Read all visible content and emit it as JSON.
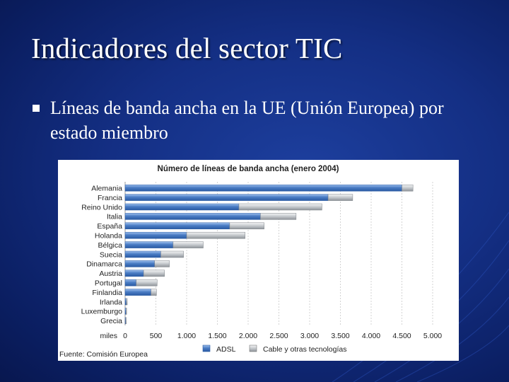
{
  "slide": {
    "title": "Indicadores del sector TIC",
    "bullet": "Líneas de banda ancha en la UE (Unión Europea) por estado miembro"
  },
  "colors": {
    "background": "#142f84",
    "adsl": "#4a7cc4",
    "cable": "#c4c8cc"
  },
  "chart_data": {
    "type": "bar",
    "orientation": "horizontal",
    "stacked": true,
    "title": "Número de líneas de banda ancha (enero 2004)",
    "xlabel": "miles",
    "source": "Fuente: Comisión Europea",
    "categories": [
      "Alemania",
      "Francia",
      "Reino Unido",
      "Italia",
      "España",
      "Holanda",
      "Bélgica",
      "Suecia",
      "Dinamarca",
      "Austria",
      "Portugal",
      "Finlandia",
      "Irlanda",
      "Luxemburgo",
      "Grecia"
    ],
    "series": [
      {
        "name": "ADSL",
        "values": [
          4500,
          3300,
          1850,
          2200,
          1700,
          1000,
          780,
          580,
          480,
          300,
          180,
          420,
          20,
          15,
          10
        ]
      },
      {
        "name": "Cable y otras tecnologías",
        "values": [
          180,
          400,
          1350,
          580,
          560,
          950,
          490,
          370,
          240,
          340,
          340,
          90,
          15,
          5,
          5
        ]
      }
    ],
    "xticks": [
      "0",
      "500",
      "1.000",
      "1.500",
      "2.000",
      "2.500",
      "3.000",
      "3.500",
      "4.000",
      "4.500",
      "5.000"
    ],
    "xlim": [
      0,
      5000
    ],
    "grid": "vertical",
    "legend": "bottom"
  }
}
